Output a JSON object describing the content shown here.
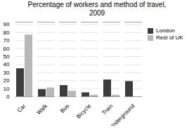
{
  "chart_data": {
    "type": "bar",
    "title": "Percentage of workers and method of travel,\n2009",
    "categories": [
      "Car",
      "Walk",
      "Bus",
      "Bicycle",
      "Train",
      "Underground"
    ],
    "series": [
      {
        "name": "London",
        "color": "#3d3d3d",
        "values": [
          35,
          9,
          14,
          5,
          21,
          19
        ]
      },
      {
        "name": "Rest of UK",
        "color": "#b8b8b8",
        "values": [
          77,
          11,
          7,
          2,
          2,
          0
        ]
      }
    ],
    "ylim": [
      0,
      93
    ],
    "yticks": [
      0,
      10,
      20,
      30,
      40,
      50,
      60,
      70,
      80,
      90
    ],
    "grid": true,
    "legend": "right"
  }
}
